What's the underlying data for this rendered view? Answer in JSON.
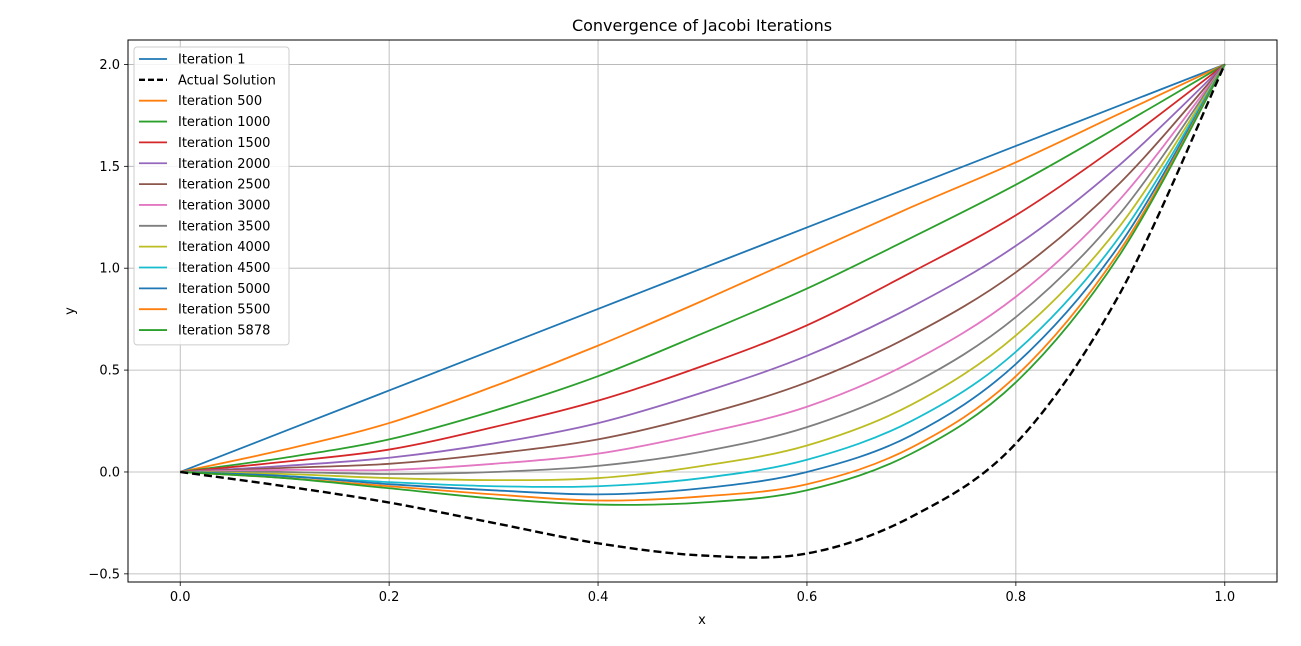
{
  "chart_data": {
    "type": "line",
    "title": "Convergence of Jacobi Iterations",
    "xlabel": "x",
    "ylabel": "y",
    "xlim": [
      -0.05,
      1.05
    ],
    "ylim": [
      -0.54,
      2.12
    ],
    "xticks": [
      0.0,
      0.2,
      0.4,
      0.6,
      0.8,
      1.0
    ],
    "yticks": [
      -0.5,
      0.0,
      0.5,
      1.0,
      1.5,
      2.0
    ],
    "xtick_labels": [
      "0.0",
      "0.2",
      "0.4",
      "0.6",
      "0.8",
      "1.0"
    ],
    "ytick_labels": [
      "−0.5",
      "0.0",
      "0.5",
      "1.0",
      "1.5",
      "2.0"
    ],
    "grid": true,
    "legend_position": "top-left",
    "x": [
      0,
      0.1,
      0.2,
      0.3,
      0.4,
      0.5,
      0.6,
      0.7,
      0.8,
      0.9,
      1.0
    ],
    "series": [
      {
        "name": "Iteration 1",
        "color": "#1f77b4",
        "dash": "solid",
        "values": [
          0,
          0.2,
          0.4,
          0.6,
          0.8,
          1.0,
          1.2,
          1.4,
          1.6,
          1.8,
          2.0
        ]
      },
      {
        "name": "Actual Solution",
        "color": "#000000",
        "dash": "dashed",
        "values": [
          0,
          -0.07,
          -0.15,
          -0.25,
          -0.35,
          -0.41,
          -0.4,
          -0.22,
          0.14,
          0.88,
          2.0
        ]
      },
      {
        "name": "Iteration 500",
        "color": "#ff7f0e",
        "dash": "solid",
        "values": [
          0,
          0.11,
          0.24,
          0.42,
          0.62,
          0.84,
          1.07,
          1.3,
          1.52,
          1.76,
          2.0
        ]
      },
      {
        "name": "Iteration 1000",
        "color": "#2ca02c",
        "dash": "solid",
        "values": [
          0,
          0.07,
          0.16,
          0.3,
          0.47,
          0.68,
          0.9,
          1.15,
          1.41,
          1.7,
          2.0
        ]
      },
      {
        "name": "Iteration 1500",
        "color": "#d62728",
        "dash": "solid",
        "values": [
          0,
          0.05,
          0.11,
          0.22,
          0.35,
          0.52,
          0.72,
          0.98,
          1.26,
          1.61,
          2.0
        ]
      },
      {
        "name": "Iteration 2000",
        "color": "#9467bd",
        "dash": "solid",
        "values": [
          0,
          0.03,
          0.07,
          0.14,
          0.24,
          0.39,
          0.57,
          0.81,
          1.11,
          1.51,
          2.0
        ]
      },
      {
        "name": "Iteration 2500",
        "color": "#8c564b",
        "dash": "solid",
        "values": [
          0,
          0.02,
          0.04,
          0.09,
          0.16,
          0.28,
          0.44,
          0.67,
          0.98,
          1.42,
          2.0
        ]
      },
      {
        "name": "Iteration 3000",
        "color": "#e377c2",
        "dash": "solid",
        "values": [
          0,
          0.01,
          0.01,
          0.04,
          0.09,
          0.19,
          0.32,
          0.54,
          0.86,
          1.34,
          2.0
        ]
      },
      {
        "name": "Iteration 3500",
        "color": "#7f7f7f",
        "dash": "solid",
        "values": [
          0,
          0.0,
          -0.01,
          0.0,
          0.03,
          0.1,
          0.22,
          0.43,
          0.76,
          1.27,
          2.0
        ]
      },
      {
        "name": "Iteration 4000",
        "color": "#bcbd22",
        "dash": "solid",
        "values": [
          0,
          -0.01,
          -0.03,
          -0.04,
          -0.03,
          0.03,
          0.13,
          0.33,
          0.67,
          1.21,
          2.0
        ]
      },
      {
        "name": "Iteration 4500",
        "color": "#17becf",
        "dash": "solid",
        "values": [
          0,
          -0.02,
          -0.05,
          -0.07,
          -0.07,
          -0.03,
          0.06,
          0.25,
          0.59,
          1.16,
          2.0
        ]
      },
      {
        "name": "Iteration 5000",
        "color": "#1f77b4",
        "dash": "solid",
        "values": [
          0,
          -0.02,
          -0.06,
          -0.09,
          -0.11,
          -0.08,
          0.0,
          0.18,
          0.53,
          1.12,
          2.0
        ]
      },
      {
        "name": "Iteration 5500",
        "color": "#ff7f0e",
        "dash": "solid",
        "values": [
          0,
          -0.03,
          -0.07,
          -0.11,
          -0.14,
          -0.12,
          -0.06,
          0.12,
          0.47,
          1.09,
          2.0
        ]
      },
      {
        "name": "Iteration 5878",
        "color": "#2ca02c",
        "dash": "solid",
        "values": [
          0,
          -0.03,
          -0.08,
          -0.13,
          -0.16,
          -0.15,
          -0.09,
          0.09,
          0.44,
          1.07,
          2.0
        ]
      }
    ]
  }
}
